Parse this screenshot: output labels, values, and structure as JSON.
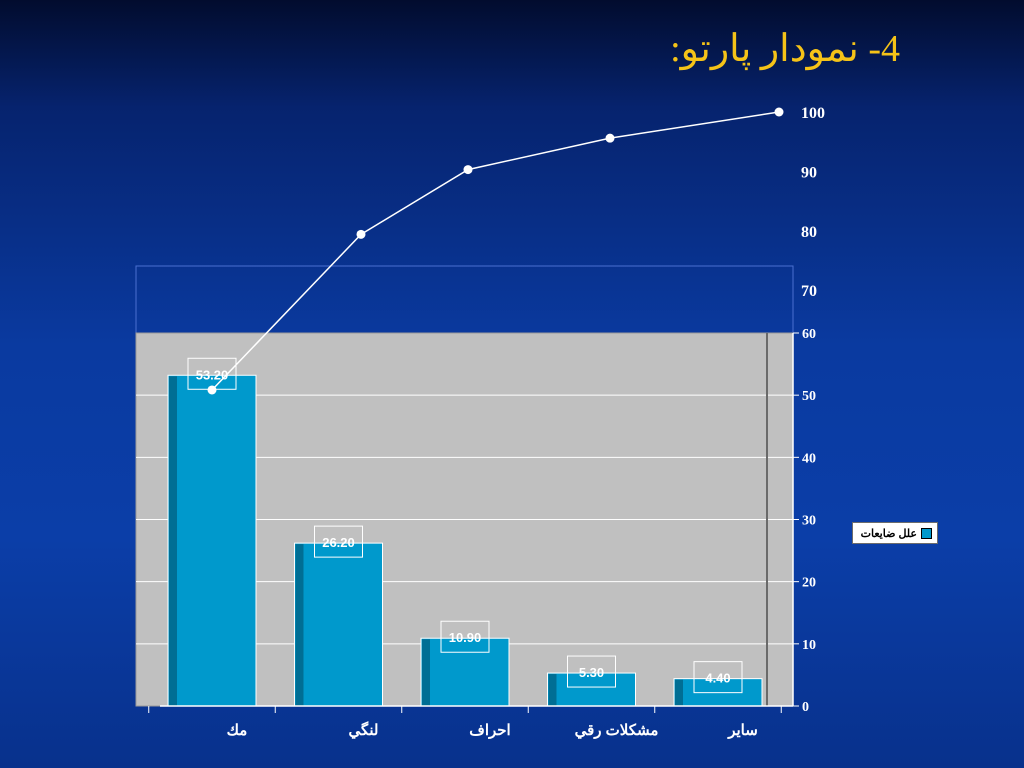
{
  "slide": {
    "title": "4- نمودار پارتو:"
  },
  "chart_data": {
    "type": "bar",
    "categories": [
      "مك",
      "لنگي",
      "احراف",
      "مشكلات رقي",
      "ساير"
    ],
    "series": [
      {
        "name": "علل ضايعات",
        "type": "bar",
        "values": [
          53.2,
          26.2,
          10.9,
          5.3,
          4.4
        ]
      },
      {
        "type": "line",
        "values": [
          53.2,
          79.4,
          90.3,
          95.6,
          100
        ]
      }
    ],
    "data_labels": [
      "53.20",
      "26.20",
      "10.90",
      "5.30",
      "4.40"
    ],
    "bar_axis": {
      "ticks": [
        "0",
        "10",
        "20",
        "30",
        "40",
        "50",
        "60"
      ],
      "ylim": [
        0,
        60
      ]
    },
    "cumulative_axis_ticks": [
      "70",
      "80",
      "90",
      "100"
    ],
    "legend": {
      "label": "علل ضايعات",
      "placement": "right"
    },
    "grid": true,
    "colors": {
      "bar": "#0099cc",
      "bar_edge": "#006e94",
      "plot_area": "#c0c0c0",
      "line": "#ffffff"
    }
  }
}
